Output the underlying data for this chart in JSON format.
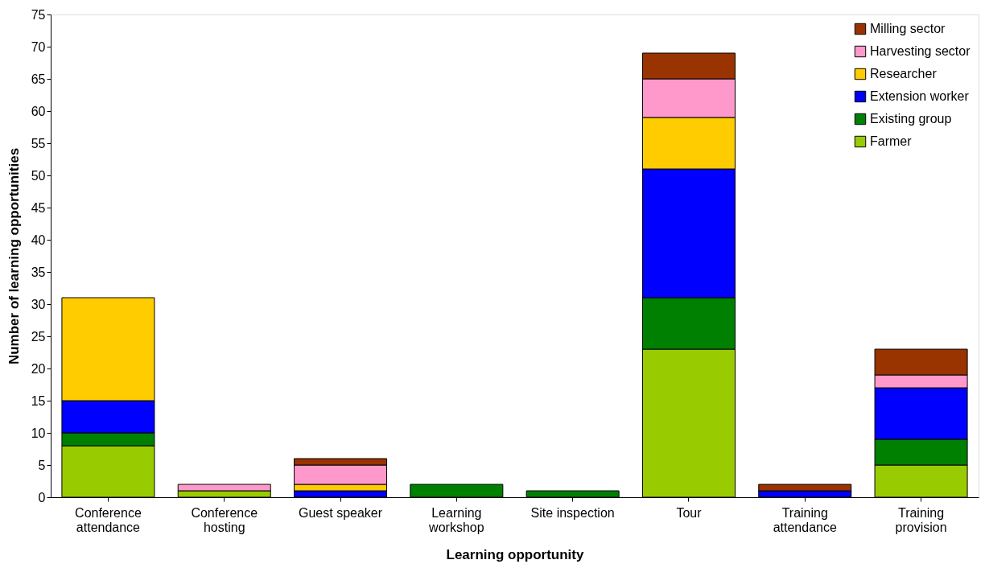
{
  "chart_data": {
    "type": "bar",
    "stacked": true,
    "xlabel": "Learning opportunity",
    "ylabel": "Number of learning opportunities",
    "categories": [
      "Conference attendance",
      "Conference hosting",
      "Guest speaker",
      "Learning workshop",
      "Site inspection",
      "Tour",
      "Training attendance",
      "Training provision"
    ],
    "series": [
      {
        "name": "Farmer",
        "color": "#99cc00",
        "values": [
          8,
          1,
          0,
          0,
          0,
          23,
          0,
          5
        ]
      },
      {
        "name": "Existing group",
        "color": "#008000",
        "values": [
          2,
          0,
          0,
          2,
          1,
          8,
          0,
          4
        ]
      },
      {
        "name": "Extension worker",
        "color": "#0000ff",
        "values": [
          5,
          0,
          1,
          0,
          0,
          20,
          1,
          8
        ]
      },
      {
        "name": "Researcher",
        "color": "#ffcc00",
        "values": [
          16,
          0,
          1,
          0,
          0,
          8,
          0,
          0
        ]
      },
      {
        "name": "Harvesting sector",
        "color": "#ff99cc",
        "values": [
          0,
          1,
          3,
          0,
          0,
          6,
          0,
          2
        ]
      },
      {
        "name": "Milling sector",
        "color": "#993300",
        "values": [
          0,
          0,
          1,
          0,
          0,
          4,
          1,
          4
        ]
      }
    ],
    "ylim": [
      0,
      75
    ],
    "yticks": [
      0,
      5,
      10,
      15,
      20,
      25,
      30,
      35,
      40,
      45,
      50,
      55,
      60,
      65,
      70,
      75
    ],
    "grid": false,
    "legend": "top right"
  }
}
